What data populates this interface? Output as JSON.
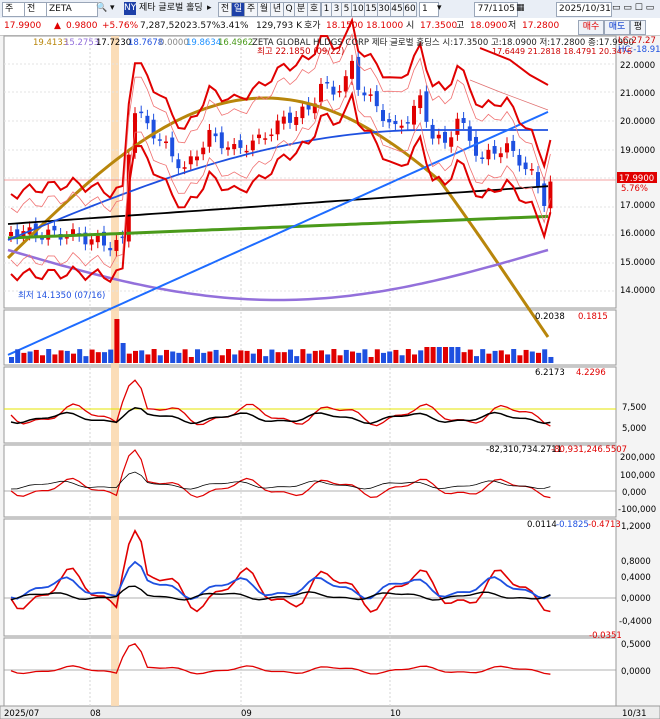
{
  "toolbar": {
    "period_selector": "주",
    "mode_selector": "전",
    "symbol": "ZETA",
    "market_badge": "NY",
    "name_short": "제타 글로벌 홀딩",
    "btn_jeon": "전",
    "btn_il": "일",
    "btn_ju": "주",
    "btn_wol": "월",
    "btn_nyeon": "년",
    "btn_q": "Q",
    "btn_bun": "분",
    "btn_ho": "호",
    "num_1": "1",
    "num_3": "3",
    "num_5": "5",
    "num_10": "10",
    "num_15": "15",
    "num_30": "30",
    "num_45": "45",
    "num_60": "60",
    "num_1b": "1",
    "counter": "77/1105",
    "date": "2025/10/31"
  },
  "infobar": {
    "price": "17.9900",
    "change": "0.9800",
    "change_pct": "+5.76%",
    "volume": "7,287,520",
    "turnover_pct": "23.57%",
    "vol_ratio": "3.41%",
    "amount": "129,793 K",
    "ho_label": "호가",
    "ho_value": "18.1500",
    "ho_value2": "18.1000",
    "open_label": "시",
    "open": "17.3500",
    "high_label": "고",
    "high": "18.0900",
    "low_label": "저",
    "low": "17.2800",
    "buy_button": "매수",
    "sell_button": "매도",
    "eval_button": "평"
  },
  "price_panel": {
    "ma_legend": [
      "19.4133",
      "15.2753",
      "17.7230",
      "18.7678",
      "0.0000",
      "19.8634",
      "16.4962"
    ],
    "ma_colors": [
      "#b8860b",
      "#9370db",
      "#000000",
      "#1e50e0",
      "#888888",
      "#1e90ff",
      "#4a9a1a"
    ],
    "info_line": "ZETA GLOBAL HLDGS CORP  제타 글로벌 홀딩스 시:17.3500 고:18.0900 저:17.2800 종:17.9900",
    "bands_line": "17.6449 21.2818 18.4791 20.3476",
    "lc_label": "LC:27.27",
    "hc_label": "HC:-18.91",
    "high_annotation": "최고 22.1850 (09/22)",
    "low_annotation": "최저 14.1350 (07/16)",
    "current_price_tag": "17.9900",
    "current_pct_tag": "5.76%",
    "y_ticks": [
      "22.0000",
      "21.0000",
      "20.0000",
      "19.0000",
      "18.0000",
      "17.0000",
      "16.0000",
      "15.0000",
      "14.0000"
    ]
  },
  "volume_panel": {
    "values_a": "0.2038",
    "values_b": "0.1815"
  },
  "ind1_panel": {
    "values_a": "6.2173",
    "values_b": "4.2296",
    "y_ticks": [
      "7,500",
      "5,000"
    ]
  },
  "ind2_panel": {
    "values_a": "-82,310,734.2711",
    "values_b": "-80,931,246.5507",
    "y_ticks": [
      "200,000",
      "100,000",
      "0,000",
      "-100,000"
    ]
  },
  "ind3_panel": {
    "values_a": "0.0114",
    "values_b": "-0.1825",
    "values_c": "-0.4713",
    "y_ticks": [
      "1,2000",
      "0,8000",
      "0,4000",
      "0,0000",
      "-0,4000"
    ]
  },
  "ind4_panel": {
    "values_a": "-0.0351",
    "y_ticks": [
      "0,5000",
      "0,0000"
    ]
  },
  "x_axis": {
    "labels": [
      "2025/07",
      "08",
      "09",
      "10",
      "10/31"
    ]
  }
}
